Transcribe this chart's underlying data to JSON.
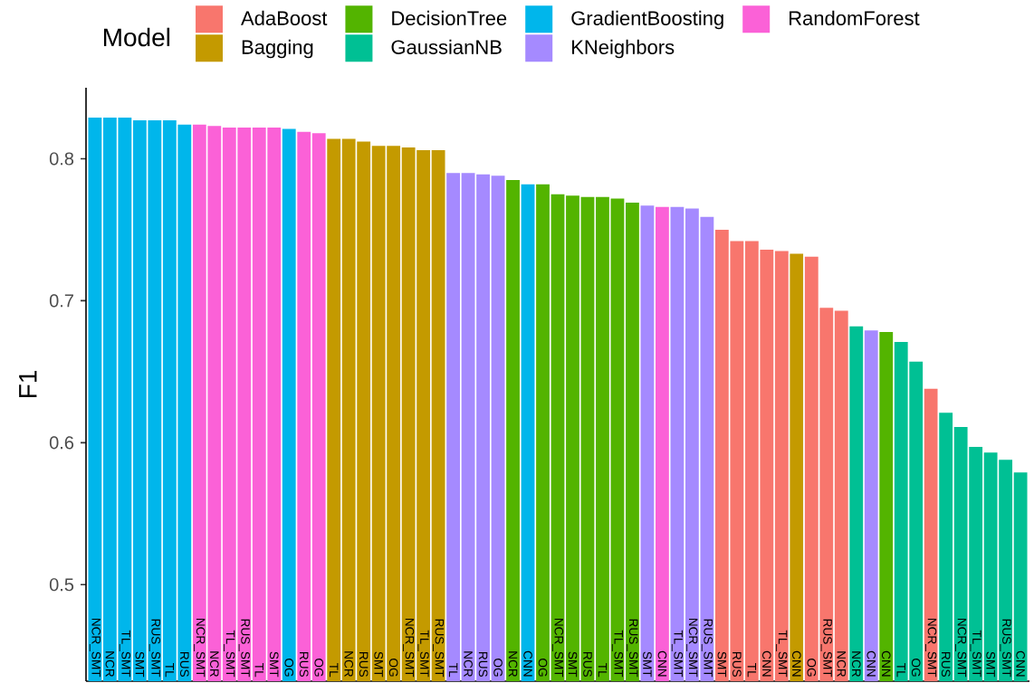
{
  "chart_data": {
    "type": "bar",
    "ylabel": "F1",
    "legend_title": "Model",
    "legend": "top",
    "ylim": [
      0.432,
      0.85
    ],
    "yticks": [
      0.5,
      0.6,
      0.7,
      0.8
    ],
    "categories": [
      "NCR_SMT",
      "NCR",
      "TL_SMT",
      "SMT",
      "RUS_SMT",
      "TL",
      "RUS",
      "NCR_SMT",
      "NCR",
      "TL_SMT",
      "RUS_SMT",
      "TL",
      "SMT",
      "OG",
      "RUS",
      "OG",
      "TL",
      "NCR",
      "RUS",
      "SMT",
      "OG",
      "NCR_SMT",
      "TL_SMT",
      "RUS_SMT",
      "TL",
      "NCR",
      "RUS",
      "OG",
      "NCR",
      "CNN",
      "OG",
      "NCR_SMT",
      "SMT",
      "RUS",
      "TL",
      "TL_SMT",
      "RUS_SMT",
      "SMT",
      "CNN",
      "TL_SMT",
      "NCR_SMT",
      "RUS_SMT",
      "SMT",
      "RUS",
      "TL",
      "CNN",
      "TL_SMT",
      "CNN",
      "OG",
      "RUS_SMT",
      "NCR",
      "NCR",
      "CNN",
      "CNN",
      "TL",
      "OG",
      "NCR_SMT",
      "RUS",
      "NCR_SMT",
      "TL_SMT",
      "SMT",
      "RUS_SMT",
      "CNN"
    ],
    "series": [
      {
        "name": "AdaBoost",
        "color": "#f8766d",
        "values": [
          null,
          null,
          null,
          null,
          null,
          null,
          null,
          null,
          null,
          null,
          null,
          null,
          null,
          null,
          null,
          null,
          null,
          null,
          null,
          null,
          null,
          null,
          null,
          null,
          null,
          null,
          null,
          null,
          null,
          null,
          null,
          null,
          null,
          null,
          null,
          null,
          null,
          null,
          null,
          null,
          null,
          null,
          0.75,
          0.742,
          0.742,
          0.736,
          0.735,
          null,
          0.731,
          0.695,
          0.693,
          null,
          null,
          null,
          null,
          null,
          0.638,
          null,
          null,
          null,
          null,
          null,
          null
        ]
      },
      {
        "name": "Bagging",
        "color": "#c49a00",
        "values": [
          null,
          null,
          null,
          null,
          null,
          null,
          null,
          null,
          null,
          null,
          null,
          null,
          null,
          null,
          null,
          null,
          0.814,
          0.814,
          0.812,
          0.809,
          0.809,
          0.808,
          0.806,
          0.806,
          null,
          null,
          null,
          null,
          null,
          null,
          null,
          null,
          null,
          null,
          null,
          null,
          null,
          null,
          null,
          null,
          null,
          null,
          null,
          null,
          null,
          null,
          null,
          0.733,
          null,
          null,
          null,
          null,
          null,
          null,
          null,
          null,
          null,
          null,
          null,
          null,
          null,
          null,
          null
        ]
      },
      {
        "name": "DecisionTree",
        "color": "#53b400",
        "values": [
          null,
          null,
          null,
          null,
          null,
          null,
          null,
          null,
          null,
          null,
          null,
          null,
          null,
          null,
          null,
          null,
          null,
          null,
          null,
          null,
          null,
          null,
          null,
          null,
          null,
          null,
          null,
          null,
          0.785,
          null,
          0.782,
          0.775,
          0.774,
          0.773,
          0.773,
          0.772,
          0.769,
          null,
          null,
          null,
          null,
          null,
          null,
          null,
          null,
          null,
          null,
          null,
          null,
          null,
          null,
          null,
          null,
          0.678,
          null,
          null,
          null,
          null,
          null,
          null,
          null,
          null,
          null
        ]
      },
      {
        "name": "GaussianNB",
        "color": "#00c094",
        "values": [
          null,
          null,
          null,
          null,
          null,
          null,
          null,
          null,
          null,
          null,
          null,
          null,
          null,
          null,
          null,
          null,
          null,
          null,
          null,
          null,
          null,
          null,
          null,
          null,
          null,
          null,
          null,
          null,
          null,
          null,
          null,
          null,
          null,
          null,
          null,
          null,
          null,
          null,
          null,
          null,
          null,
          null,
          null,
          null,
          null,
          null,
          null,
          null,
          null,
          null,
          null,
          0.682,
          null,
          null,
          0.671,
          0.657,
          null,
          0.621,
          0.611,
          0.597,
          0.593,
          0.588,
          0.579
        ]
      },
      {
        "name": "GradientBoosting",
        "color": "#00b6eb",
        "values": [
          0.829,
          0.829,
          0.829,
          0.827,
          0.827,
          0.827,
          0.824,
          null,
          null,
          null,
          null,
          null,
          null,
          0.821,
          null,
          null,
          null,
          null,
          null,
          null,
          null,
          null,
          null,
          null,
          null,
          null,
          null,
          null,
          null,
          0.782,
          null,
          null,
          null,
          null,
          null,
          null,
          null,
          null,
          null,
          null,
          null,
          null,
          null,
          null,
          null,
          null,
          null,
          null,
          null,
          null,
          null,
          null,
          null,
          null,
          null,
          null,
          null,
          null,
          null,
          null,
          null,
          null,
          null
        ]
      },
      {
        "name": "KNeighbors",
        "color": "#a58aff",
        "values": [
          null,
          null,
          null,
          null,
          null,
          null,
          null,
          null,
          null,
          null,
          null,
          null,
          null,
          null,
          null,
          null,
          null,
          null,
          null,
          null,
          null,
          null,
          null,
          null,
          0.79,
          0.79,
          0.789,
          0.788,
          null,
          null,
          null,
          null,
          null,
          null,
          null,
          null,
          null,
          0.767,
          null,
          0.766,
          0.765,
          0.759,
          null,
          null,
          null,
          null,
          null,
          null,
          null,
          null,
          null,
          null,
          0.679,
          null,
          null,
          null,
          null,
          null,
          null,
          null,
          null,
          null,
          null
        ]
      },
      {
        "name": "RandomForest",
        "color": "#fb61d7",
        "values": [
          null,
          null,
          null,
          null,
          null,
          null,
          null,
          0.824,
          0.823,
          0.822,
          0.822,
          0.822,
          0.822,
          null,
          0.819,
          0.818,
          null,
          null,
          null,
          null,
          null,
          null,
          null,
          null,
          null,
          null,
          null,
          null,
          null,
          null,
          null,
          null,
          null,
          null,
          null,
          null,
          null,
          null,
          0.766,
          null,
          null,
          null,
          null,
          null,
          null,
          null,
          null,
          null,
          null,
          null,
          null,
          null,
          null,
          null,
          null,
          null,
          null,
          null,
          null,
          null,
          null,
          null,
          null
        ]
      }
    ]
  }
}
